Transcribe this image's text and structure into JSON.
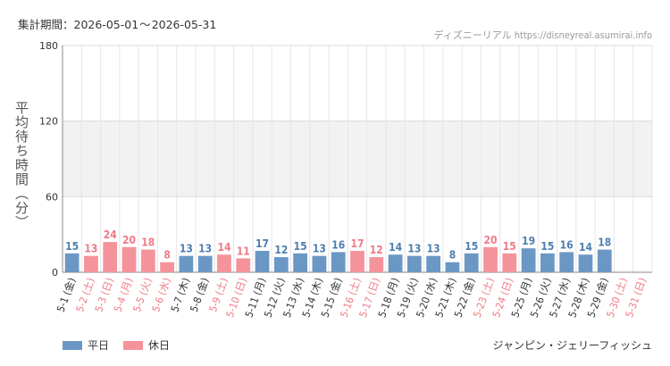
{
  "period": {
    "label": "集計期間：",
    "start": "2026-05-01",
    "tilde": "～",
    "end": "2026-05-31"
  },
  "source": "ディズニーリアル https://disneyreal.asumirai.info",
  "attraction": "ジャンピン・ジェリーフィッシュ",
  "legend": {
    "weekday": "平日",
    "holiday": "休日"
  },
  "colors": {
    "weekday": "#6b97c5",
    "holiday": "#f4939b",
    "weekday_text": "#4f7fae",
    "holiday_text": "#ee7b85",
    "axis_text": "#333333"
  },
  "chart_data": {
    "type": "bar",
    "ylabel": "平均待ち時間（分）",
    "ylim": [
      0,
      180
    ],
    "yticks": [
      0,
      60,
      120,
      180
    ],
    "categories": [
      "5-1 (金)",
      "5-2 (土)",
      "5-3 (日)",
      "5-4 (月)",
      "5-5 (火)",
      "5-6 (水)",
      "5-7 (木)",
      "5-8 (金)",
      "5-9 (土)",
      "5-10 (日)",
      "5-11 (月)",
      "5-12 (火)",
      "5-13 (水)",
      "5-14 (木)",
      "5-15 (金)",
      "5-16 (土)",
      "5-17 (日)",
      "5-18 (月)",
      "5-19 (火)",
      "5-20 (水)",
      "5-21 (木)",
      "5-22 (金)",
      "5-23 (土)",
      "5-24 (日)",
      "5-25 (月)",
      "5-26 (火)",
      "5-27 (水)",
      "5-28 (木)",
      "5-29 (金)",
      "5-30 (土)",
      "5-31 (日)"
    ],
    "values": [
      15,
      13,
      24,
      20,
      18,
      8,
      13,
      13,
      14,
      11,
      17,
      12,
      15,
      13,
      16,
      17,
      12,
      14,
      13,
      13,
      8,
      15,
      20,
      15,
      19,
      15,
      16,
      14,
      18,
      null,
      null
    ],
    "day_type": [
      "weekday",
      "holiday",
      "holiday",
      "holiday",
      "holiday",
      "holiday",
      "weekday",
      "weekday",
      "holiday",
      "holiday",
      "weekday",
      "weekday",
      "weekday",
      "weekday",
      "weekday",
      "holiday",
      "holiday",
      "weekday",
      "weekday",
      "weekday",
      "weekday",
      "weekday",
      "holiday",
      "holiday",
      "weekday",
      "weekday",
      "weekday",
      "weekday",
      "weekday",
      "holiday",
      "holiday"
    ],
    "grid": true,
    "legend_position": "bottom-left"
  }
}
